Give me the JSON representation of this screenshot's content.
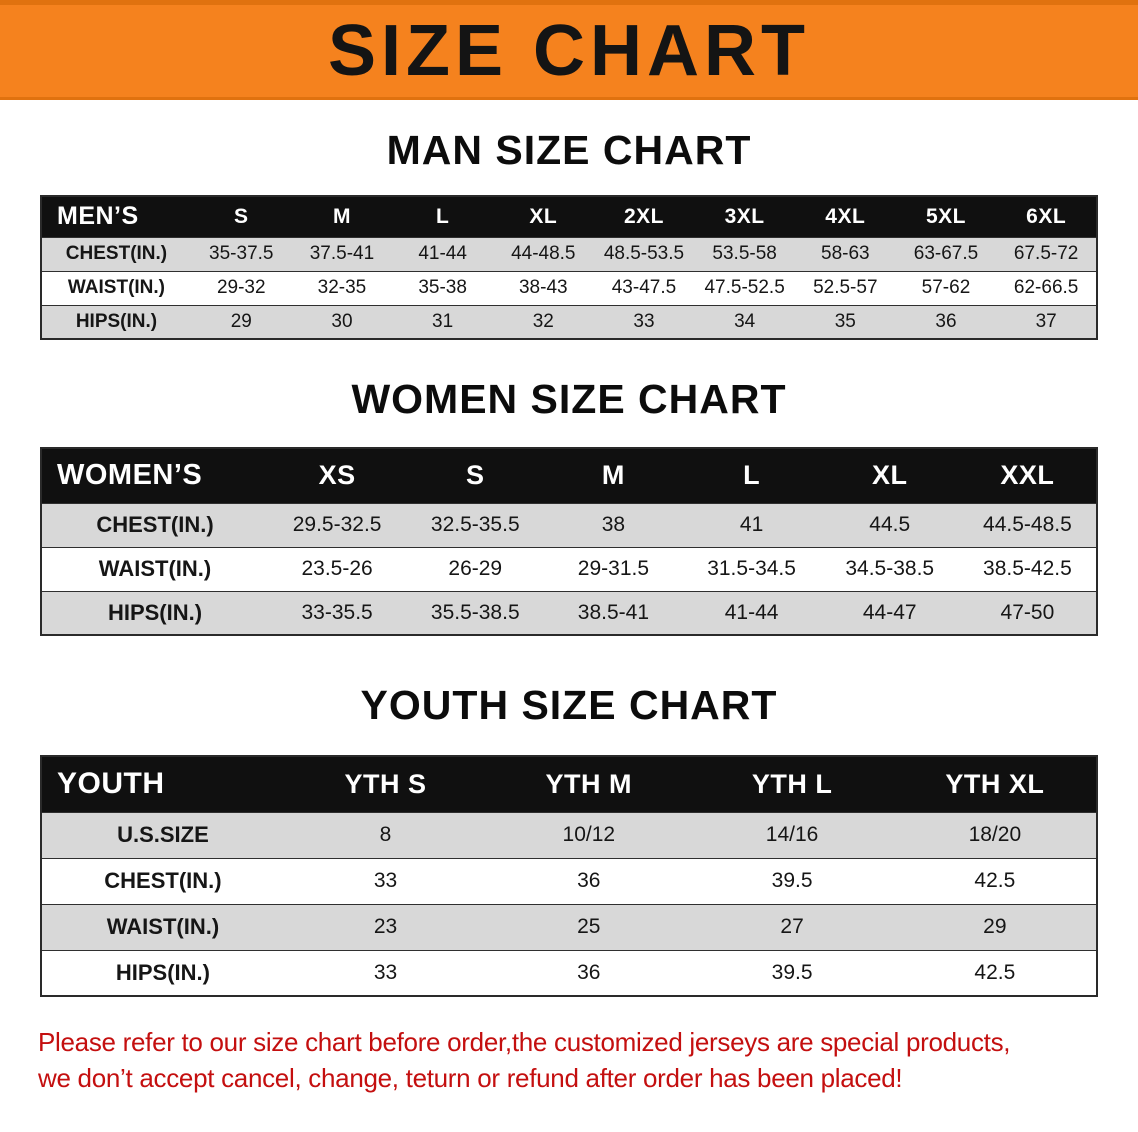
{
  "banner": {
    "title": "SIZE CHART"
  },
  "men": {
    "heading": "MAN SIZE CHART",
    "table": {
      "header": [
        "MEN’S",
        "S",
        "M",
        "L",
        "XL",
        "2XL",
        "3XL",
        "4XL",
        "5XL",
        "6XL"
      ],
      "rows": [
        {
          "label": "CHEST(IN.)",
          "values": [
            "35-37.5",
            "37.5-41",
            "41-44",
            "44-48.5",
            "48.5-53.5",
            "53.5-58",
            "58-63",
            "63-67.5",
            "67.5-72"
          ]
        },
        {
          "label": "WAIST(IN.)",
          "values": [
            "29-32",
            "32-35",
            "35-38",
            "38-43",
            "43-47.5",
            "47.5-52.5",
            "52.5-57",
            "57-62",
            "62-66.5"
          ]
        },
        {
          "label": "HIPS(IN.)",
          "values": [
            "29",
            "30",
            "31",
            "32",
            "33",
            "34",
            "35",
            "36",
            "37"
          ]
        }
      ]
    }
  },
  "women": {
    "heading": "WOMEN SIZE CHART",
    "table": {
      "header": [
        "WOMEN’S",
        "XS",
        "S",
        "M",
        "L",
        "XL",
        "XXL"
      ],
      "rows": [
        {
          "label": "CHEST(IN.)",
          "values": [
            "29.5-32.5",
            "32.5-35.5",
            "38",
            "41",
            "44.5",
            "44.5-48.5"
          ]
        },
        {
          "label": "WAIST(IN.)",
          "values": [
            "23.5-26",
            "26-29",
            "29-31.5",
            "31.5-34.5",
            "34.5-38.5",
            "38.5-42.5"
          ]
        },
        {
          "label": "HIPS(IN.)",
          "values": [
            "33-35.5",
            "35.5-38.5",
            "38.5-41",
            "41-44",
            "44-47",
            "47-50"
          ]
        }
      ]
    }
  },
  "youth": {
    "heading": "YOUTH SIZE CHART",
    "table": {
      "header": [
        "YOUTH",
        "YTH S",
        "YTH M",
        "YTH L",
        "YTH XL"
      ],
      "rows": [
        {
          "label": "U.S.SIZE",
          "values": [
            "8",
            "10/12",
            "14/16",
            "18/20"
          ]
        },
        {
          "label": "CHEST(IN.)",
          "values": [
            "33",
            "36",
            "39.5",
            "42.5"
          ]
        },
        {
          "label": "WAIST(IN.)",
          "values": [
            "23",
            "25",
            "27",
            "29"
          ]
        },
        {
          "label": "HIPS(IN.)",
          "values": [
            "33",
            "36",
            "39.5",
            "42.5"
          ]
        }
      ]
    }
  },
  "disclaimer": {
    "line1": "Please refer to our size chart before order,the customized jerseys are special products,",
    "line2": "we don’t accept cancel, change, teturn or refund after order has been placed!"
  },
  "colors": {
    "banner_orange": "#f5821e",
    "header_black": "#101010",
    "row_gray": "#d8d8d8",
    "row_white": "#ffffff",
    "disclaimer_red": "#c40f0f"
  }
}
